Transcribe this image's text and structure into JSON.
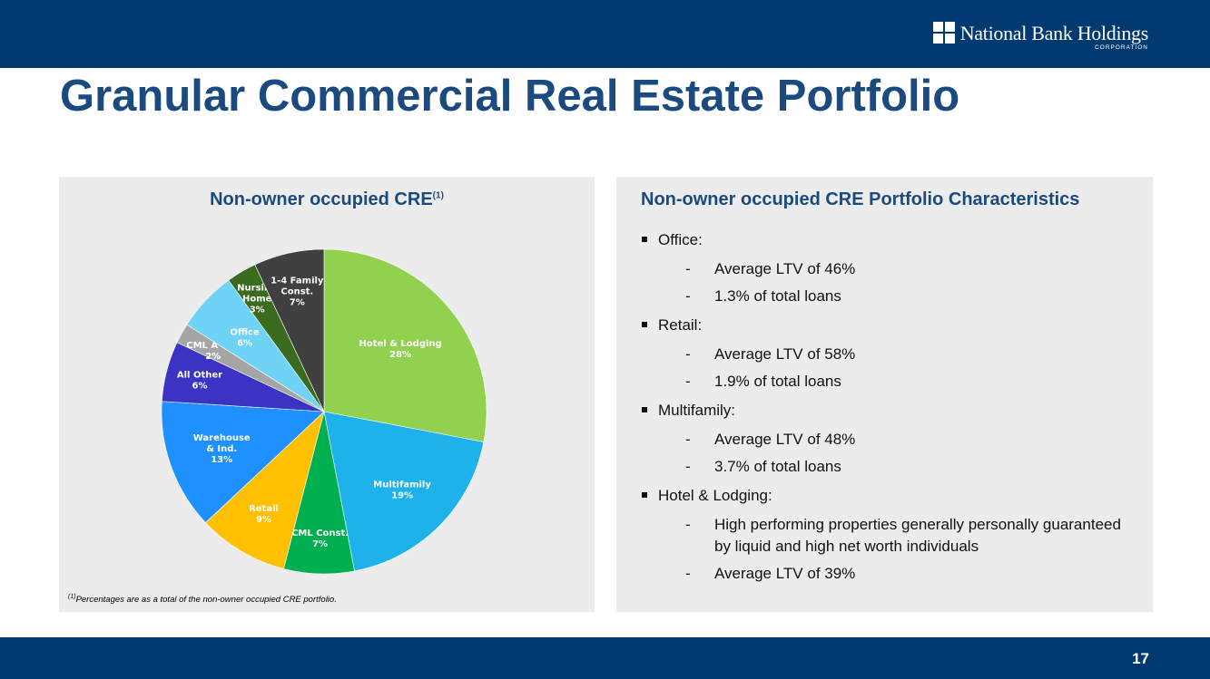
{
  "header": {
    "logo_name": "National Bank Holdings",
    "logo_sub": "CORPORATION"
  },
  "title": "Granular Commercial Real Estate Portfolio",
  "left_panel": {
    "title": "Non-owner occupied CRE",
    "title_sup": "(1)",
    "footnote_sup": "(1)",
    "footnote": "Percentages are as a total of the non-owner occupied CRE portfolio."
  },
  "chart_data": {
    "type": "pie",
    "title": "Non-owner occupied CRE",
    "slices": [
      {
        "label": [
          "Hotel & Lodging"
        ],
        "value": 28,
        "pct_label": "28%",
        "color": "#92d050",
        "text_color": "#ffffff"
      },
      {
        "label": [
          "Multifamily"
        ],
        "value": 19,
        "pct_label": "19%",
        "color": "#1eb1ea",
        "text_color": "#ffffff"
      },
      {
        "label": [
          "CML Const."
        ],
        "value": 7,
        "pct_label": "7%",
        "color": "#00b050",
        "text_color": "#ffffff"
      },
      {
        "label": [
          "Retail"
        ],
        "value": 9,
        "pct_label": "9%",
        "color": "#ffc000",
        "text_color": "#ffffff"
      },
      {
        "label": [
          "Warehouse",
          "& Ind."
        ],
        "value": 13,
        "pct_label": "13%",
        "color": "#1e90ff",
        "text_color": "#ffffff"
      },
      {
        "label": [
          "All Other"
        ],
        "value": 6,
        "pct_label": "6%",
        "color": "#3a33c4",
        "text_color": "#ffffff"
      },
      {
        "label": [
          "CML A & D"
        ],
        "value": 2,
        "pct_label": "2%",
        "color": "#a5a5a5",
        "text_color": "#ffffff"
      },
      {
        "label": [
          "Office"
        ],
        "value": 6,
        "pct_label": "6%",
        "color": "#6fd3f5",
        "text_color": "#ffffff"
      },
      {
        "label": [
          "Nursing",
          "Home"
        ],
        "value": 3,
        "pct_label": "3%",
        "color": "#3a6b1f",
        "text_color": "#ffffff"
      },
      {
        "label": [
          "1-4 Family",
          "Const."
        ],
        "value": 7,
        "pct_label": "7%",
        "color": "#404040",
        "text_color": "#ffffff"
      }
    ]
  },
  "right_panel": {
    "title": "Non-owner occupied CRE Portfolio Characteristics",
    "items": [
      {
        "label": "Office:",
        "subs": [
          "Average LTV of 46%",
          "1.3% of total loans"
        ]
      },
      {
        "label": "Retail:",
        "subs": [
          "Average LTV of 58%",
          "1.9% of total loans"
        ]
      },
      {
        "label": "Multifamily:",
        "subs": [
          "Average LTV of 48%",
          "3.7% of total loans"
        ]
      },
      {
        "label": "Hotel & Lodging:",
        "subs": [
          "High performing properties generally personally guaranteed by liquid and high net worth individuals",
          "Average LTV of 39%"
        ]
      }
    ],
    "dash": "-"
  },
  "footer": {
    "page_number": "17"
  }
}
